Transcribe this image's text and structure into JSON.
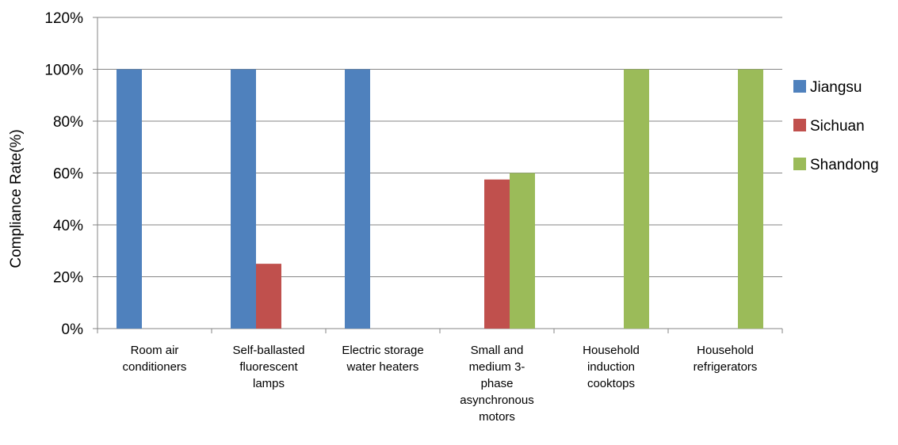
{
  "chart_data": {
    "type": "bar",
    "title": "",
    "xlabel": "",
    "ylabel": "Compliance Rate(%)",
    "ylim": [
      0,
      120
    ],
    "y_ticks": [
      "0%",
      "20%",
      "40%",
      "60%",
      "80%",
      "100%",
      "120%"
    ],
    "y_tick_values": [
      0,
      20,
      40,
      60,
      80,
      100,
      120
    ],
    "grid": true,
    "legend_position": "right",
    "categories": [
      [
        "Room air",
        "conditioners"
      ],
      [
        "Self-ballasted",
        "fluorescent",
        "lamps"
      ],
      [
        "Electric storage",
        "water heaters"
      ],
      [
        "Small and",
        "medium 3-",
        "phase",
        "asynchronous",
        "motors"
      ],
      [
        "Household",
        "induction",
        "cooktops"
      ],
      [
        "Household",
        "refrigerators"
      ]
    ],
    "series": [
      {
        "name": "Jiangsu",
        "color": "#4f81bd",
        "values": [
          100,
          100,
          100,
          null,
          null,
          null
        ]
      },
      {
        "name": "Sichuan",
        "color": "#c0504d",
        "values": [
          null,
          25,
          null,
          57.5,
          null,
          null
        ]
      },
      {
        "name": "Shandong",
        "color": "#9bbb59",
        "values": [
          null,
          null,
          null,
          60,
          100,
          100
        ]
      }
    ]
  }
}
